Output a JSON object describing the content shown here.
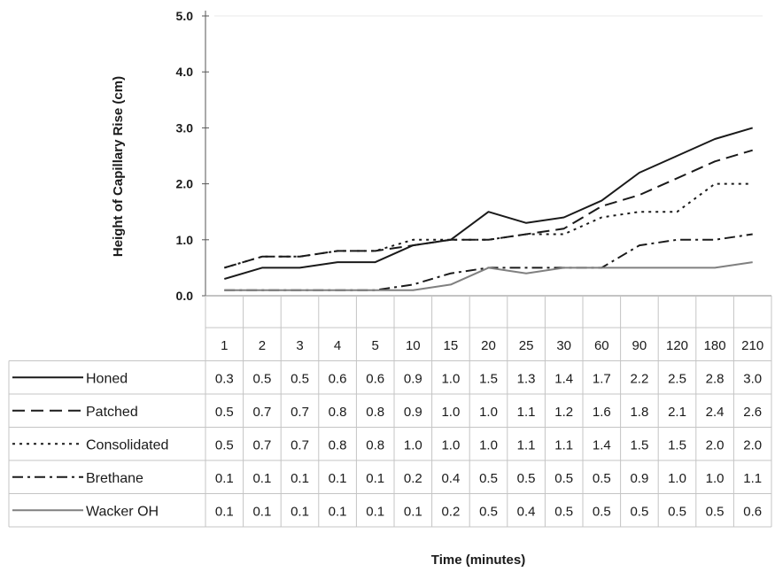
{
  "chart_data": {
    "type": "line",
    "title": "",
    "ylabel": "Height of Capillary Rise (cm)",
    "xlabel": "Time (minutes)",
    "ylim": [
      0,
      5
    ],
    "yticks": [
      "0.0",
      "1.0",
      "2.0",
      "3.0",
      "4.0",
      "5.0"
    ],
    "categories": [
      "1",
      "2",
      "3",
      "4",
      "5",
      "10",
      "15",
      "20",
      "25",
      "30",
      "60",
      "90",
      "120",
      "180",
      "210"
    ],
    "grid": false,
    "legend": "data-table-left",
    "series": [
      {
        "name": "Honed",
        "style": "solid",
        "color": "#1a1a1a",
        "values": [
          0.3,
          0.5,
          0.5,
          0.6,
          0.6,
          0.9,
          1.0,
          1.5,
          1.3,
          1.4,
          1.7,
          2.2,
          2.5,
          2.8,
          3.0
        ],
        "labels": [
          "0.3",
          "0.5",
          "0.5",
          "0.6",
          "0.6",
          "0.9",
          "1.0",
          "1.5",
          "1.3",
          "1.4",
          "1.7",
          "2.2",
          "2.5",
          "2.8",
          "3.0"
        ]
      },
      {
        "name": "Patched",
        "style": "dashed",
        "color": "#1a1a1a",
        "values": [
          0.5,
          0.7,
          0.7,
          0.8,
          0.8,
          0.9,
          1.0,
          1.0,
          1.1,
          1.2,
          1.6,
          1.8,
          2.1,
          2.4,
          2.6
        ],
        "labels": [
          "0.5",
          "0.7",
          "0.7",
          "0.8",
          "0.8",
          "0.9",
          "1.0",
          "1.0",
          "1.1",
          "1.2",
          "1.6",
          "1.8",
          "2.1",
          "2.4",
          "2.6"
        ]
      },
      {
        "name": "Consolidated",
        "style": "dotted",
        "color": "#1a1a1a",
        "values": [
          0.5,
          0.7,
          0.7,
          0.8,
          0.8,
          1.0,
          1.0,
          1.0,
          1.1,
          1.1,
          1.4,
          1.5,
          1.5,
          2.0,
          2.0
        ],
        "labels": [
          "0.5",
          "0.7",
          "0.7",
          "0.8",
          "0.8",
          "1.0",
          "1.0",
          "1.0",
          "1.1",
          "1.1",
          "1.4",
          "1.5",
          "1.5",
          "2.0",
          "2.0"
        ]
      },
      {
        "name": "Brethane",
        "style": "dash-dot",
        "color": "#1a1a1a",
        "values": [
          0.1,
          0.1,
          0.1,
          0.1,
          0.1,
          0.2,
          0.4,
          0.5,
          0.5,
          0.5,
          0.5,
          0.9,
          1.0,
          1.0,
          1.1
        ],
        "labels": [
          "0.1",
          "0.1",
          "0.1",
          "0.1",
          "0.1",
          "0.2",
          "0.4",
          "0.5",
          "0.5",
          "0.5",
          "0.5",
          "0.9",
          "1.0",
          "1.0",
          "1.1"
        ]
      },
      {
        "name": "Wacker OH",
        "style": "solid",
        "color": "#808080",
        "values": [
          0.1,
          0.1,
          0.1,
          0.1,
          0.1,
          0.1,
          0.2,
          0.5,
          0.4,
          0.5,
          0.5,
          0.5,
          0.5,
          0.5,
          0.6
        ],
        "labels": [
          "0.1",
          "0.1",
          "0.1",
          "0.1",
          "0.1",
          "0.1",
          "0.2",
          "0.5",
          "0.4",
          "0.5",
          "0.5",
          "0.5",
          "0.5",
          "0.5",
          "0.6"
        ]
      }
    ]
  }
}
